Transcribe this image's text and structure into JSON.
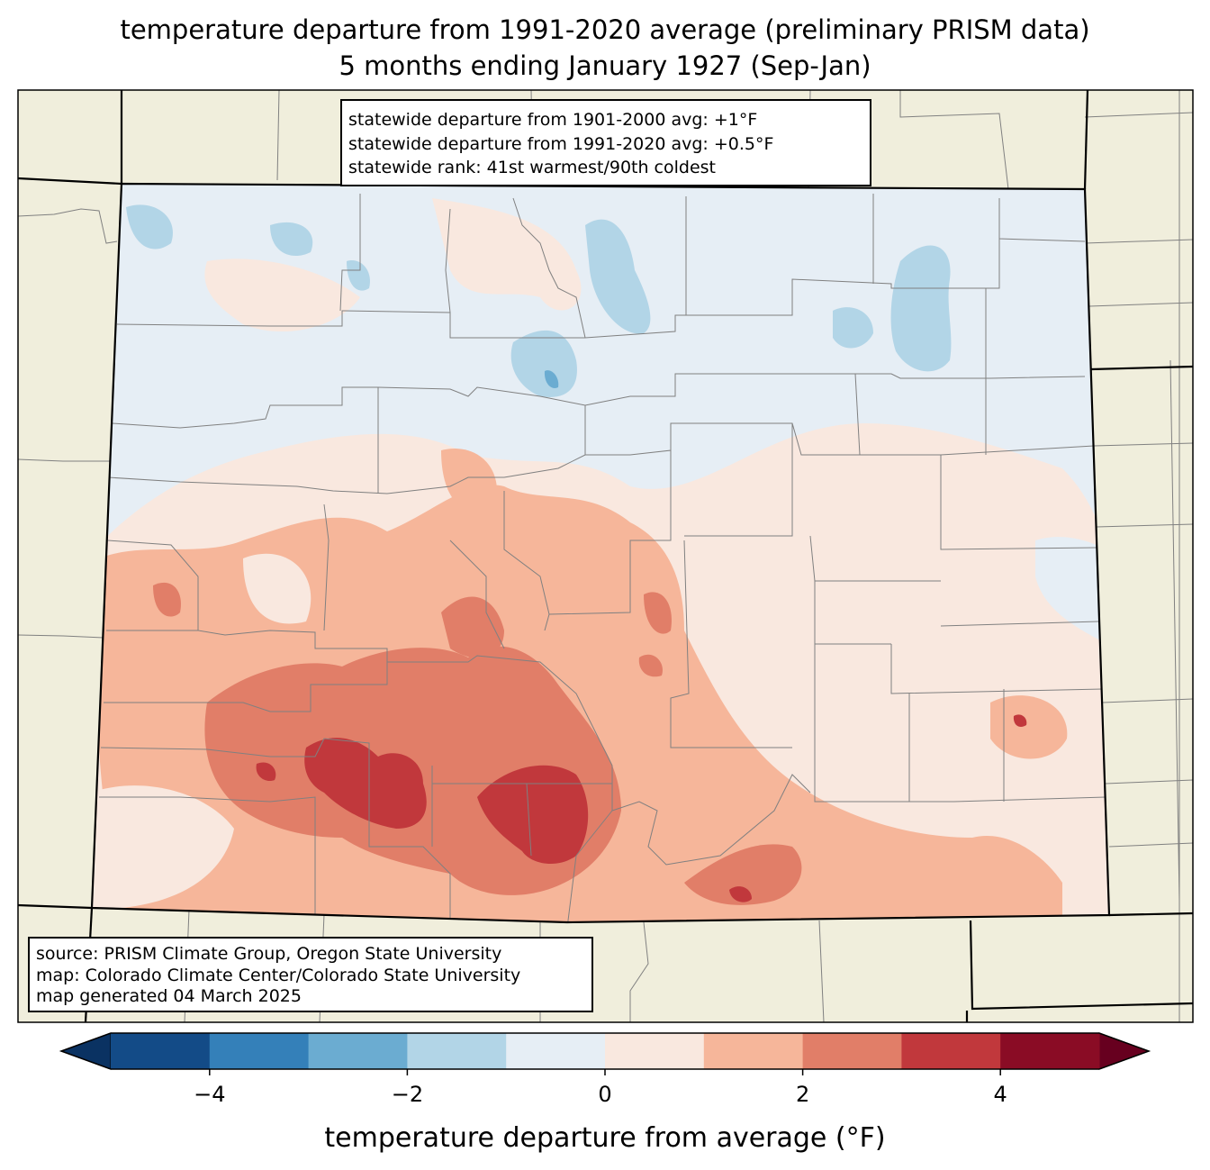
{
  "title": {
    "line1": "temperature departure from 1991-2020 average (preliminary PRISM data)",
    "line2": "5 months ending January 1927 (Sep-Jan)"
  },
  "stats_box": {
    "line1": "statewide departure from 1901-2000 avg: +1°F",
    "line2": "statewide departure from 1991-2020 avg: +0.5°F",
    "line3": "statewide rank: 41st warmest/90th coldest"
  },
  "source_box": {
    "line1": "source: PRISM Climate Group, Oregon State University",
    "line2": "map: Colorado Climate Center/Colorado State University",
    "line3": "map generated 04 March 2025"
  },
  "colorbar": {
    "label": "temperature departure from average (°F)",
    "ticks": [
      "−4",
      "−2",
      "0",
      "2",
      "4"
    ],
    "tick_values": [
      -4,
      -2,
      0,
      2,
      4
    ],
    "range": [
      -5,
      5
    ],
    "bins": [
      {
        "from": -5,
        "to": -4,
        "color": "#134b87"
      },
      {
        "from": -4,
        "to": -3,
        "color": "#3480b9"
      },
      {
        "from": -3,
        "to": -2,
        "color": "#6bacd1"
      },
      {
        "from": -2,
        "to": -1,
        "color": "#b2d5e7"
      },
      {
        "from": -1,
        "to": 0,
        "color": "#e6eef5"
      },
      {
        "from": 0,
        "to": 1,
        "color": "#f9e8df"
      },
      {
        "from": 1,
        "to": 2,
        "color": "#f6b69a"
      },
      {
        "from": 2,
        "to": 3,
        "color": "#e17e68"
      },
      {
        "from": 3,
        "to": 4,
        "color": "#c1383c"
      },
      {
        "from": 4,
        "to": 5,
        "color": "#8a0c25"
      }
    ],
    "under_color": "#0a3262",
    "over_color": "#67001f"
  },
  "map_colors": {
    "background": "#f0eedc",
    "border": "#808080"
  }
}
